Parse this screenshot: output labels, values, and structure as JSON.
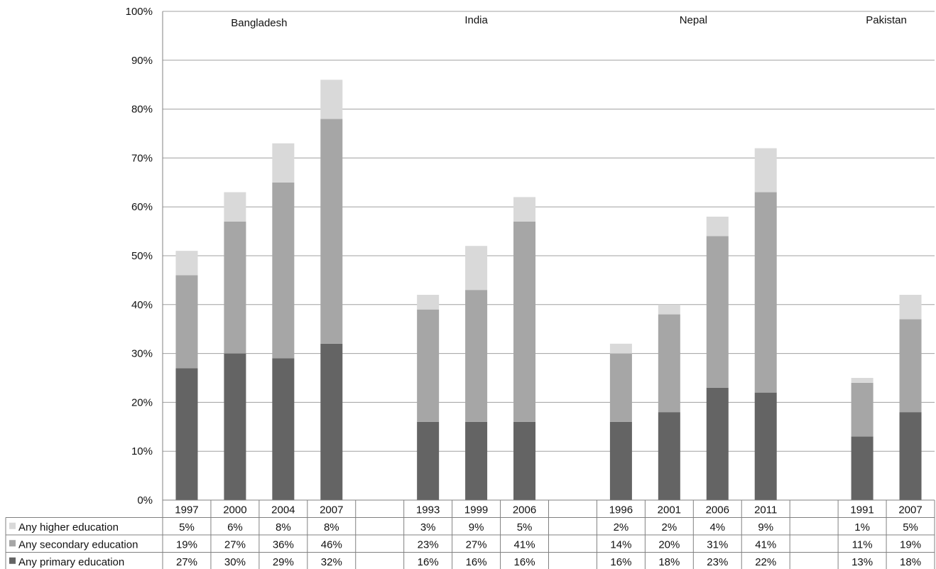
{
  "chart_data": {
    "type": "bar",
    "stacked": true,
    "ylim": [
      0,
      100
    ],
    "yticks": [
      "0%",
      "10%",
      "20%",
      "30%",
      "40%",
      "50%",
      "60%",
      "70%",
      "80%",
      "90%",
      "100%"
    ],
    "grid": true,
    "legend_position": "data-table-left",
    "colors": {
      "primary": "#646464",
      "secondary": "#a6a6a6",
      "higher": "#d9d9d9",
      "grid": "#a0a0a0",
      "axis": "#808080"
    },
    "groups": [
      {
        "label": "Bangladesh",
        "categories": [
          "1997",
          "2000",
          "2004",
          "2007"
        ]
      },
      {
        "label": "India",
        "categories": [
          "1993",
          "1999",
          "2006"
        ]
      },
      {
        "label": "Nepal",
        "categories": [
          "1996",
          "2001",
          "2006",
          "2011"
        ]
      },
      {
        "label": "Pakistan",
        "categories": [
          "1991",
          "2007"
        ]
      }
    ],
    "categories": [
      "1997",
      "2000",
      "2004",
      "2007",
      "",
      "1993",
      "1999",
      "2006",
      "",
      "1996",
      "2001",
      "2006",
      "2011",
      "",
      "1991",
      "2007"
    ],
    "series": [
      {
        "name": "Any primary education",
        "key": "primary",
        "values": [
          27,
          30,
          29,
          32,
          null,
          16,
          16,
          16,
          null,
          16,
          18,
          23,
          22,
          null,
          13,
          18
        ],
        "labels": [
          "27%",
          "30%",
          "29%",
          "32%",
          "",
          "16%",
          "16%",
          "16%",
          "",
          "16%",
          "18%",
          "23%",
          "22%",
          "",
          "13%",
          "18%"
        ]
      },
      {
        "name": "Any secondary education",
        "key": "secondary",
        "values": [
          19,
          27,
          36,
          46,
          null,
          23,
          27,
          41,
          null,
          14,
          20,
          31,
          41,
          null,
          11,
          19
        ],
        "labels": [
          "19%",
          "27%",
          "36%",
          "46%",
          "",
          "23%",
          "27%",
          "41%",
          "",
          "14%",
          "20%",
          "31%",
          "41%",
          "",
          "11%",
          "19%"
        ]
      },
      {
        "name": "Any higher education",
        "key": "higher",
        "values": [
          5,
          6,
          8,
          8,
          null,
          3,
          9,
          5,
          null,
          2,
          2,
          4,
          9,
          null,
          1,
          5
        ],
        "labels": [
          "5%",
          "6%",
          "8%",
          "8%",
          "",
          "3%",
          "9%",
          "5%",
          "",
          "2%",
          "2%",
          "4%",
          "9%",
          "",
          "1%",
          "5%"
        ]
      }
    ],
    "table_row_order": [
      "higher",
      "secondary",
      "primary"
    ]
  }
}
